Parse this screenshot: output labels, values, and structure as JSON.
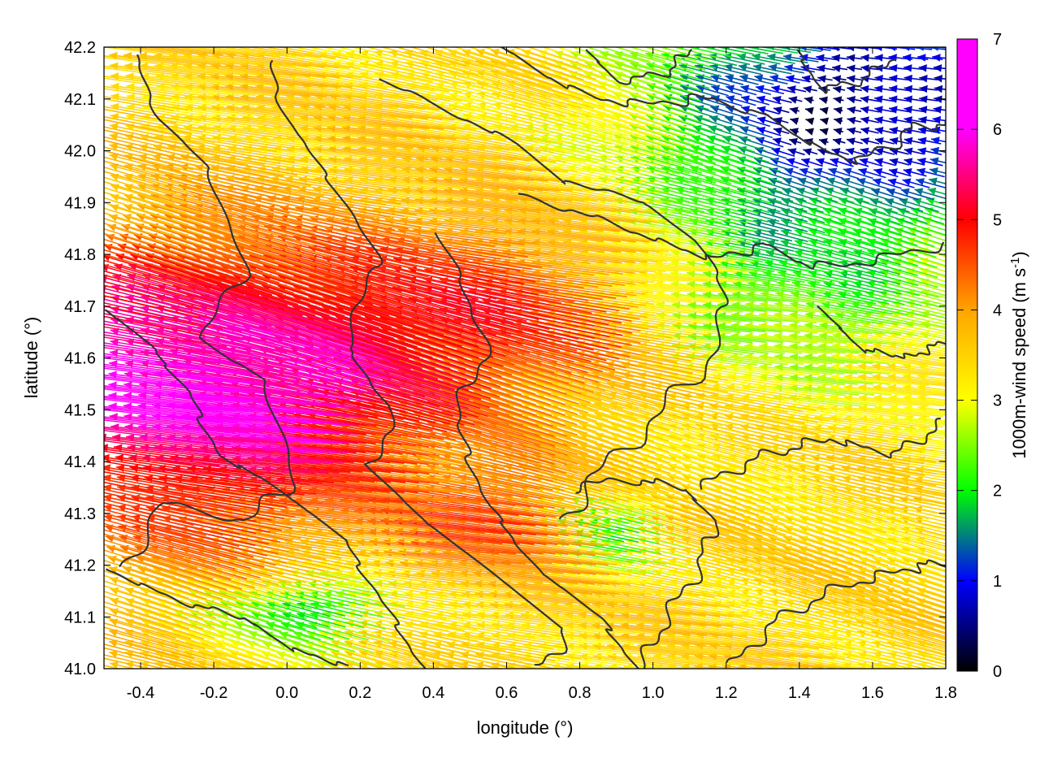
{
  "chart_data": {
    "type": "vector-field",
    "xlabel": "longitude (°)",
    "ylabel": "latitude (°)",
    "xlim": [
      -0.5,
      1.8
    ],
    "ylim": [
      41.0,
      42.2
    ],
    "x_ticks": [
      "-0.4",
      "-0.2",
      "0.0",
      "0.2",
      "0.4",
      "0.6",
      "0.8",
      "1.0",
      "1.2",
      "1.4",
      "1.6",
      "1.8"
    ],
    "y_ticks": [
      "41.0",
      "41.1",
      "41.2",
      "41.3",
      "41.4",
      "41.5",
      "41.6",
      "41.7",
      "41.8",
      "41.9",
      "42.0",
      "42.1",
      "42.2"
    ],
    "grid": "dotted",
    "colorbar": {
      "label_main": "1000m-wind speed (m s",
      "label_sup": "-1",
      "label_end": ")",
      "range": [
        0,
        7
      ],
      "ticks": [
        "0",
        "1",
        "2",
        "3",
        "4",
        "5",
        "6",
        "7"
      ],
      "palette": [
        "#000000",
        "#0000ff",
        "#00ff00",
        "#ffff00",
        "#ffa500",
        "#ff0000",
        "#ff00ff"
      ]
    },
    "wind_direction": "mostly westward (easterly wind)",
    "regional_speed_m_s": {
      "west_central": 7,
      "west_north_south": 5.5,
      "center": 6,
      "northeast": 0.8,
      "east_mid": 2.5,
      "south_east": 4
    },
    "contour_color": "#333333"
  }
}
